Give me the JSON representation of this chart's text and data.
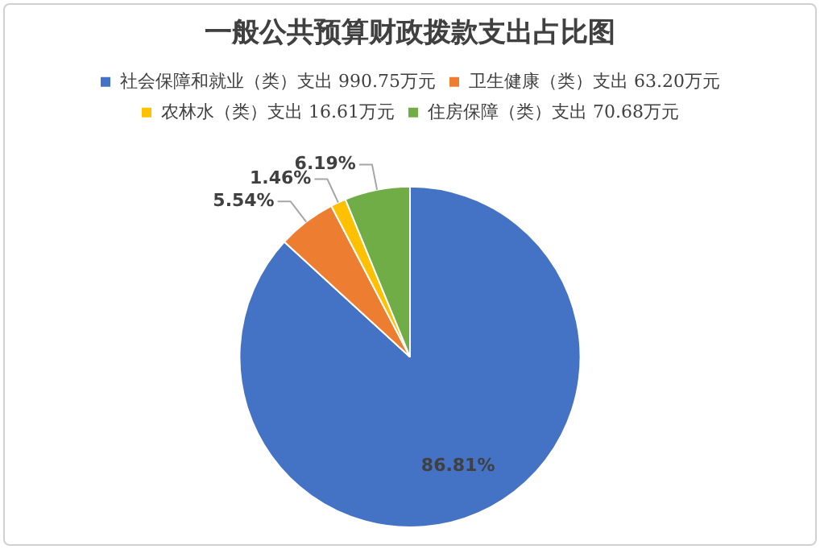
{
  "chart_data": {
    "type": "pie",
    "title": "一般公共预算财政拨款支出占比图",
    "categories": [
      "社会保障和就业（类）支出 990.75万元",
      "卫生健康（类）支出 63.20万元",
      "农林水（类）支出 16.61万元",
      "住房保障（类）支出 70.68万元"
    ],
    "values": [
      86.81,
      5.54,
      1.46,
      6.19
    ],
    "colors": [
      "#4472c4",
      "#ed7d31",
      "#ffc000",
      "#70ad47"
    ],
    "value_labels": [
      "86.81%",
      "5.54%",
      "1.46%",
      "6.19%"
    ],
    "legend": "top"
  }
}
